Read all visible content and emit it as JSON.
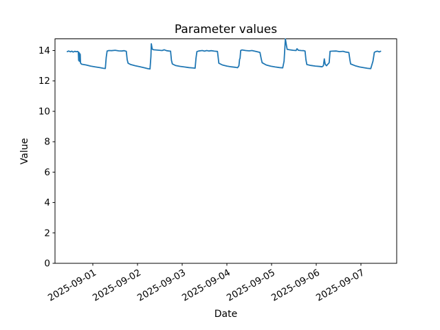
{
  "chart_data": {
    "type": "line",
    "title": "Parameter values",
    "xlabel": "Date",
    "ylabel": "Value",
    "grid": false,
    "legend": "none",
    "background_color": "#ffffff",
    "spine_color": "#000000",
    "x_unit": "days since 2025-08-31 00:00",
    "xlim": [
      0.154,
      7.8
    ],
    "ylim": [
      0,
      14.77
    ],
    "y_ticks": [
      0,
      2,
      4,
      6,
      8,
      10,
      12,
      14
    ],
    "x_ticks": [
      {
        "t": 1,
        "label": "2025-09-01"
      },
      {
        "t": 2,
        "label": "2025-09-02"
      },
      {
        "t": 3,
        "label": "2025-09-03"
      },
      {
        "t": 4,
        "label": "2025-09-04"
      },
      {
        "t": 5,
        "label": "2025-09-05"
      },
      {
        "t": 6,
        "label": "2025-09-06"
      },
      {
        "t": 7,
        "label": "2025-09-07"
      }
    ],
    "x_tick_rotation_deg": 30,
    "series": [
      {
        "name": "parameter",
        "color": "#1f77b4",
        "line_width": 1.8,
        "points": [
          [
            0.43,
            13.93
          ],
          [
            0.46,
            13.97
          ],
          [
            0.5,
            13.92
          ],
          [
            0.53,
            13.96
          ],
          [
            0.56,
            13.9
          ],
          [
            0.6,
            13.95
          ],
          [
            0.63,
            13.92
          ],
          [
            0.66,
            13.94
          ],
          [
            0.675,
            13.9
          ],
          [
            0.683,
            13.35
          ],
          [
            0.69,
            13.88
          ],
          [
            0.697,
            13.3
          ],
          [
            0.704,
            13.82
          ],
          [
            0.711,
            13.28
          ],
          [
            0.718,
            13.75
          ],
          [
            0.725,
            13.18
          ],
          [
            0.75,
            13.1
          ],
          [
            0.85,
            13.05
          ],
          [
            0.95,
            12.98
          ],
          [
            1.05,
            12.93
          ],
          [
            1.15,
            12.88
          ],
          [
            1.24,
            12.83
          ],
          [
            1.28,
            12.82
          ],
          [
            1.3,
            13.55
          ],
          [
            1.32,
            13.97
          ],
          [
            1.36,
            14.0
          ],
          [
            1.42,
            13.99
          ],
          [
            1.5,
            14.02
          ],
          [
            1.58,
            13.98
          ],
          [
            1.65,
            13.97
          ],
          [
            1.7,
            13.99
          ],
          [
            1.75,
            13.95
          ],
          [
            1.77,
            13.4
          ],
          [
            1.79,
            13.17
          ],
          [
            1.85,
            13.08
          ],
          [
            1.95,
            13.0
          ],
          [
            2.05,
            12.94
          ],
          [
            2.15,
            12.87
          ],
          [
            2.24,
            12.8
          ],
          [
            2.28,
            12.79
          ],
          [
            2.3,
            13.6
          ],
          [
            2.31,
            14.45
          ],
          [
            2.33,
            14.1
          ],
          [
            2.36,
            14.05
          ],
          [
            2.45,
            14.03
          ],
          [
            2.55,
            14.0
          ],
          [
            2.6,
            14.05
          ],
          [
            2.65,
            13.99
          ],
          [
            2.7,
            13.97
          ],
          [
            2.74,
            13.96
          ],
          [
            2.76,
            13.35
          ],
          [
            2.78,
            13.12
          ],
          [
            2.85,
            13.02
          ],
          [
            2.95,
            12.96
          ],
          [
            3.05,
            12.92
          ],
          [
            3.15,
            12.88
          ],
          [
            3.25,
            12.85
          ],
          [
            3.29,
            12.84
          ],
          [
            3.31,
            13.5
          ],
          [
            3.33,
            13.93
          ],
          [
            3.37,
            13.97
          ],
          [
            3.45,
            14.0
          ],
          [
            3.5,
            13.96
          ],
          [
            3.55,
            14.0
          ],
          [
            3.6,
            13.97
          ],
          [
            3.65,
            13.99
          ],
          [
            3.72,
            13.96
          ],
          [
            3.79,
            13.94
          ],
          [
            3.81,
            13.45
          ],
          [
            3.82,
            13.17
          ],
          [
            3.9,
            13.05
          ],
          [
            4.0,
            12.98
          ],
          [
            4.1,
            12.93
          ],
          [
            4.18,
            12.9
          ],
          [
            4.24,
            12.87
          ],
          [
            4.27,
            13.0
          ],
          [
            4.285,
            13.42
          ],
          [
            4.295,
            13.5
          ],
          [
            4.31,
            14.0
          ],
          [
            4.34,
            14.04
          ],
          [
            4.42,
            14.0
          ],
          [
            4.5,
            13.98
          ],
          [
            4.56,
            14.0
          ],
          [
            4.62,
            13.96
          ],
          [
            4.68,
            13.92
          ],
          [
            4.74,
            13.88
          ],
          [
            4.77,
            13.45
          ],
          [
            4.79,
            13.2
          ],
          [
            4.88,
            13.05
          ],
          [
            4.98,
            12.97
          ],
          [
            5.08,
            12.92
          ],
          [
            5.18,
            12.88
          ],
          [
            5.25,
            12.86
          ],
          [
            5.28,
            13.3
          ],
          [
            5.3,
            14.3
          ],
          [
            5.31,
            14.76
          ],
          [
            5.33,
            14.4
          ],
          [
            5.35,
            14.08
          ],
          [
            5.4,
            14.05
          ],
          [
            5.48,
            14.02
          ],
          [
            5.55,
            14.0
          ],
          [
            5.57,
            14.12
          ],
          [
            5.6,
            14.02
          ],
          [
            5.66,
            14.0
          ],
          [
            5.72,
            13.99
          ],
          [
            5.75,
            13.97
          ],
          [
            5.77,
            13.4
          ],
          [
            5.79,
            13.08
          ],
          [
            5.88,
            13.02
          ],
          [
            5.98,
            12.98
          ],
          [
            6.08,
            12.95
          ],
          [
            6.13,
            12.93
          ],
          [
            6.16,
            13.0
          ],
          [
            6.18,
            13.45
          ],
          [
            6.2,
            13.1
          ],
          [
            6.23,
            13.0
          ],
          [
            6.29,
            13.2
          ],
          [
            6.31,
            13.95
          ],
          [
            6.36,
            13.96
          ],
          [
            6.45,
            13.97
          ],
          [
            6.52,
            13.93
          ],
          [
            6.6,
            13.95
          ],
          [
            6.66,
            13.9
          ],
          [
            6.73,
            13.87
          ],
          [
            6.755,
            13.35
          ],
          [
            6.77,
            13.12
          ],
          [
            6.87,
            13.0
          ],
          [
            6.97,
            12.92
          ],
          [
            7.07,
            12.87
          ],
          [
            7.15,
            12.83
          ],
          [
            7.22,
            12.81
          ],
          [
            7.27,
            13.3
          ],
          [
            7.3,
            13.88
          ],
          [
            7.33,
            13.93
          ],
          [
            7.37,
            13.96
          ],
          [
            7.41,
            13.91
          ],
          [
            7.44,
            13.95
          ]
        ]
      }
    ]
  }
}
